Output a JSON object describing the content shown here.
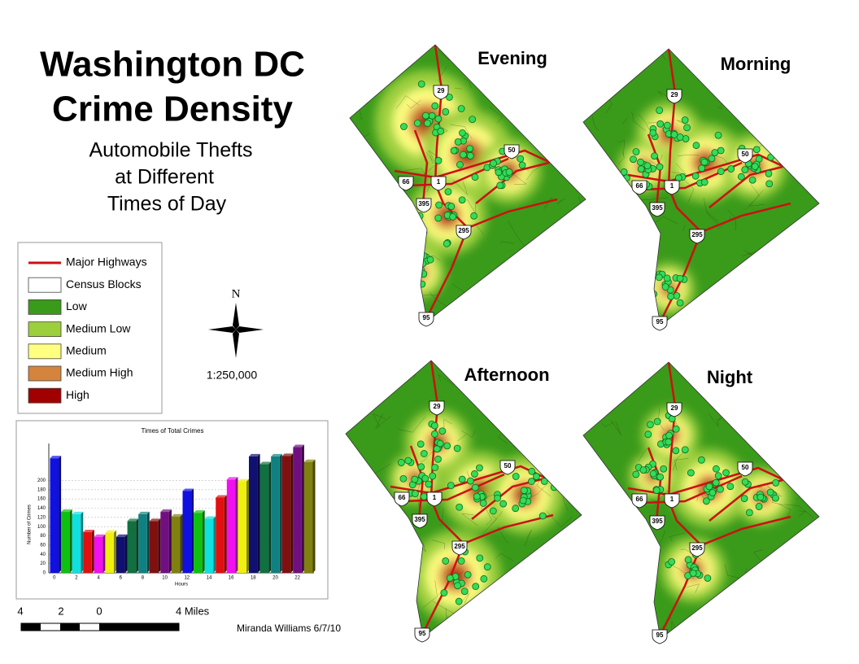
{
  "title": [
    "Washington DC",
    "Crime Density"
  ],
  "subtitle": [
    "Automobile Thefts",
    "at Different",
    "Times of Day"
  ],
  "legend": [
    {
      "label": "Major Highways",
      "color": "#cc1111",
      "kind": "line"
    },
    {
      "label": "Census Blocks",
      "color": "#ffffff",
      "kind": "box"
    },
    {
      "label": "Low",
      "color": "#3a9a1a",
      "kind": "box"
    },
    {
      "label": "Medium Low",
      "color": "#9ccf3c",
      "kind": "box"
    },
    {
      "label": "Medium",
      "color": "#ffff80",
      "kind": "box"
    },
    {
      "label": "Medium High",
      "color": "#d4843c",
      "kind": "box"
    },
    {
      "label": "High",
      "color": "#a00000",
      "kind": "box"
    }
  ],
  "north": "N",
  "scale": "1:250,000",
  "scale_bar": [
    "4",
    "2",
    "0",
    "4 Miles"
  ],
  "author": "Miranda Williams 6/7/10",
  "maps": [
    {
      "label": "Evening"
    },
    {
      "label": "Morning"
    },
    {
      "label": "Afternoon"
    },
    {
      "label": "Night"
    }
  ],
  "shields": [
    "29",
    "50",
    "66",
    "1",
    "395",
    "295",
    "95"
  ],
  "chart_data": {
    "type": "bar",
    "title": "Times of Total Crimes",
    "x_label": "Hours",
    "y_label": "Number of Crimes",
    "categories": [
      0,
      null,
      2,
      null,
      4,
      null,
      6,
      null,
      8,
      null,
      10,
      null,
      12,
      null,
      14,
      null,
      16,
      null,
      18,
      null,
      20,
      null,
      22,
      null
    ],
    "values": [
      248,
      132,
      127,
      88,
      78,
      87,
      78,
      112,
      127,
      112,
      132,
      122,
      177,
      130,
      117,
      163,
      202,
      198,
      252,
      235,
      252,
      253,
      272,
      240
    ],
    "colors": [
      "#1010e0",
      "#10c010",
      "#10e0e0",
      "#e01010",
      "#f010f0",
      "#f0f010",
      "#101070",
      "#107040",
      "#108080",
      "#801010",
      "#701080",
      "#808010",
      "#1010e0",
      "#10c010",
      "#10e0e0",
      "#e01010",
      "#f010f0",
      "#f0f010",
      "#101070",
      "#107040",
      "#108080",
      "#801010",
      "#701080",
      "#808010"
    ],
    "ylim": [
      0,
      280
    ],
    "yticks": [
      0,
      20,
      40,
      60,
      80,
      100,
      120,
      140,
      160,
      180,
      200
    ],
    "grid": true
  }
}
